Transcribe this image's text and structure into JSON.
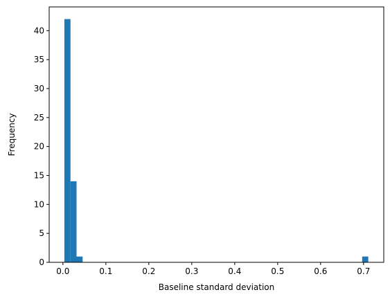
{
  "chart_data": {
    "type": "bar",
    "subtype": "histogram",
    "title": "",
    "xlabel": "Baseline standard deviation",
    "ylabel": "Frequency",
    "xlim": [
      -0.032,
      0.747
    ],
    "ylim": [
      0,
      44.1
    ],
    "xticks": [
      0.0,
      0.1,
      0.2,
      0.3,
      0.4,
      0.5,
      0.6,
      0.7
    ],
    "xtick_labels": [
      "0.0",
      "0.1",
      "0.2",
      "0.3",
      "0.4",
      "0.5",
      "0.6",
      "0.7"
    ],
    "yticks": [
      0,
      5,
      10,
      15,
      20,
      25,
      30,
      35,
      40
    ],
    "ytick_labels": [
      "0",
      "5",
      "10",
      "15",
      "20",
      "25",
      "30",
      "35",
      "40"
    ],
    "bin_start": 0.0034,
    "bin_width": 0.01415,
    "counts": [
      42,
      14,
      1,
      0,
      0,
      0,
      0,
      0,
      0,
      0,
      0,
      0,
      0,
      0,
      0,
      0,
      0,
      0,
      0,
      0,
      0,
      0,
      0,
      0,
      0,
      0,
      0,
      0,
      0,
      0,
      0,
      0,
      0,
      0,
      0,
      0,
      0,
      0,
      0,
      0,
      0,
      0,
      0,
      0,
      0,
      0,
      0,
      0,
      0,
      1
    ],
    "bar_color": "#1f77b4",
    "grid": false,
    "legend": "none"
  }
}
